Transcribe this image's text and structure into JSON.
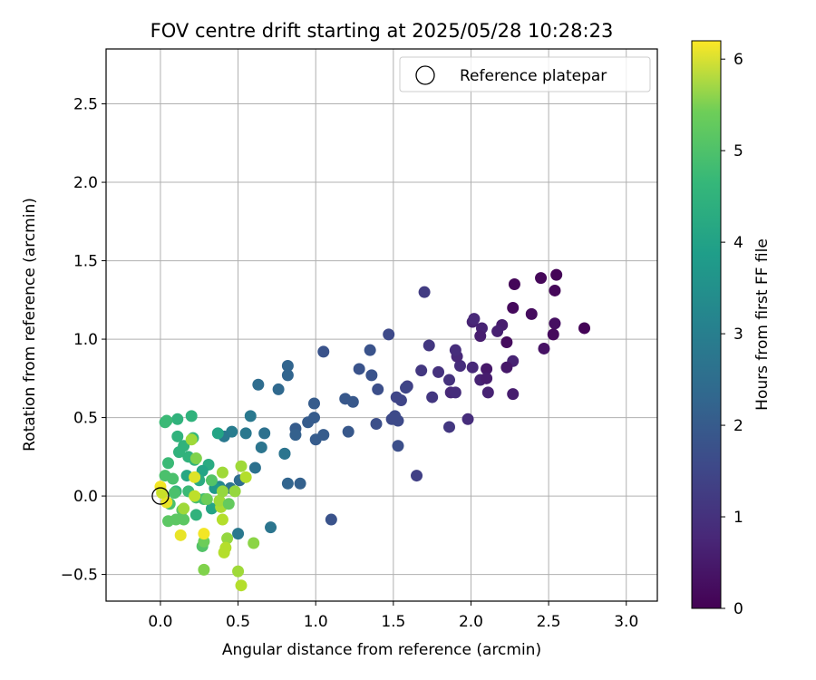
{
  "chart_data": {
    "type": "scatter",
    "title": "FOV centre drift starting at 2025/05/28 10:28:23",
    "xlabel": "Angular distance from reference (arcmin)",
    "ylabel": "Rotation from reference (arcmin)",
    "xlim": [
      -0.35,
      3.2
    ],
    "ylim": [
      -0.67,
      2.85
    ],
    "xticks": [
      0.0,
      0.5,
      1.0,
      1.5,
      2.0,
      2.5,
      3.0
    ],
    "yticks": [
      -0.5,
      0.0,
      0.5,
      1.0,
      1.5,
      2.0,
      2.5
    ],
    "xtick_labels": [
      "0.0",
      "0.5",
      "1.0",
      "1.5",
      "2.0",
      "2.5",
      "3.0"
    ],
    "ytick_labels": [
      "−0.5",
      "0.0",
      "0.5",
      "1.0",
      "1.5",
      "2.0",
      "2.5"
    ],
    "grid": true,
    "legend": {
      "location": "upper right",
      "entries": [
        "Reference platepar"
      ]
    },
    "reference_point": {
      "x": 0.0,
      "y": 0.0,
      "label": "Reference platepar"
    },
    "colorbar": {
      "label": "Hours from first FF file",
      "colormap": "viridis",
      "range": [
        0,
        6.2
      ],
      "ticks": [
        0,
        1,
        2,
        3,
        4,
        5,
        6
      ],
      "tick_labels": [
        "0",
        "1",
        "2",
        "3",
        "4",
        "5",
        "6"
      ]
    },
    "points": [
      {
        "x": 2.55,
        "y": 1.41,
        "c": 0.05
      },
      {
        "x": 2.45,
        "y": 1.39,
        "c": 0.1
      },
      {
        "x": 2.28,
        "y": 1.35,
        "c": 0.08
      },
      {
        "x": 2.54,
        "y": 1.31,
        "c": 0.1
      },
      {
        "x": 2.27,
        "y": 1.2,
        "c": 0.15
      },
      {
        "x": 2.39,
        "y": 1.16,
        "c": 0.2
      },
      {
        "x": 2.54,
        "y": 1.1,
        "c": 0.25
      },
      {
        "x": 2.73,
        "y": 1.07,
        "c": 0.05
      },
      {
        "x": 2.53,
        "y": 1.03,
        "c": 0.15
      },
      {
        "x": 2.47,
        "y": 0.94,
        "c": 0.3
      },
      {
        "x": 2.23,
        "y": 0.98,
        "c": 0.2
      },
      {
        "x": 2.2,
        "y": 1.09,
        "c": 0.5
      },
      {
        "x": 2.17,
        "y": 1.05,
        "c": 0.55
      },
      {
        "x": 2.07,
        "y": 1.07,
        "c": 0.6
      },
      {
        "x": 2.01,
        "y": 1.11,
        "c": 0.6
      },
      {
        "x": 2.02,
        "y": 1.13,
        "c": 0.7
      },
      {
        "x": 2.06,
        "y": 1.02,
        "c": 0.5
      },
      {
        "x": 2.27,
        "y": 0.86,
        "c": 0.6
      },
      {
        "x": 2.23,
        "y": 0.82,
        "c": 0.4
      },
      {
        "x": 2.1,
        "y": 0.81,
        "c": 0.4
      },
      {
        "x": 2.06,
        "y": 0.74,
        "c": 0.6
      },
      {
        "x": 2.1,
        "y": 0.75,
        "c": 0.5
      },
      {
        "x": 2.01,
        "y": 0.82,
        "c": 0.7
      },
      {
        "x": 1.93,
        "y": 0.83,
        "c": 0.8
      },
      {
        "x": 1.91,
        "y": 0.89,
        "c": 0.7
      },
      {
        "x": 1.9,
        "y": 0.93,
        "c": 0.8
      },
      {
        "x": 2.27,
        "y": 0.65,
        "c": 0.5
      },
      {
        "x": 2.11,
        "y": 0.66,
        "c": 0.6
      },
      {
        "x": 1.98,
        "y": 0.49,
        "c": 0.8
      },
      {
        "x": 1.87,
        "y": 0.66,
        "c": 0.7
      },
      {
        "x": 1.9,
        "y": 0.66,
        "c": 0.8
      },
      {
        "x": 1.86,
        "y": 0.74,
        "c": 0.9
      },
      {
        "x": 1.79,
        "y": 0.79,
        "c": 0.9
      },
      {
        "x": 1.75,
        "y": 0.63,
        "c": 1.0
      },
      {
        "x": 1.86,
        "y": 0.44,
        "c": 1.0
      },
      {
        "x": 1.68,
        "y": 0.8,
        "c": 1.0
      },
      {
        "x": 1.73,
        "y": 0.96,
        "c": 1.0
      },
      {
        "x": 1.7,
        "y": 1.3,
        "c": 1.1
      },
      {
        "x": 1.65,
        "y": 0.13,
        "c": 1.2
      },
      {
        "x": 1.59,
        "y": 0.7,
        "c": 1.2
      },
      {
        "x": 1.58,
        "y": 0.69,
        "c": 1.3
      },
      {
        "x": 1.55,
        "y": 0.61,
        "c": 1.3
      },
      {
        "x": 1.52,
        "y": 0.63,
        "c": 1.3
      },
      {
        "x": 1.53,
        "y": 0.48,
        "c": 1.4
      },
      {
        "x": 1.51,
        "y": 0.51,
        "c": 1.4
      },
      {
        "x": 1.49,
        "y": 0.49,
        "c": 1.4
      },
      {
        "x": 1.53,
        "y": 0.32,
        "c": 1.5
      },
      {
        "x": 1.47,
        "y": 1.03,
        "c": 1.4
      },
      {
        "x": 1.39,
        "y": 0.46,
        "c": 1.5
      },
      {
        "x": 1.4,
        "y": 0.68,
        "c": 1.5
      },
      {
        "x": 1.36,
        "y": 0.77,
        "c": 1.6
      },
      {
        "x": 1.35,
        "y": 0.93,
        "c": 1.6
      },
      {
        "x": 1.28,
        "y": 0.81,
        "c": 1.6
      },
      {
        "x": 1.24,
        "y": 0.6,
        "c": 1.7
      },
      {
        "x": 1.19,
        "y": 0.62,
        "c": 1.7
      },
      {
        "x": 1.21,
        "y": 0.41,
        "c": 1.7
      },
      {
        "x": 1.1,
        "y": -0.15,
        "c": 1.6
      },
      {
        "x": 1.05,
        "y": 0.39,
        "c": 1.8
      },
      {
        "x": 1.05,
        "y": 0.92,
        "c": 1.6
      },
      {
        "x": 1.0,
        "y": 0.36,
        "c": 1.8
      },
      {
        "x": 0.99,
        "y": 0.59,
        "c": 1.8
      },
      {
        "x": 0.99,
        "y": 0.5,
        "c": 1.8
      },
      {
        "x": 0.95,
        "y": 0.47,
        "c": 1.8
      },
      {
        "x": 0.9,
        "y": 0.08,
        "c": 1.9
      },
      {
        "x": 0.87,
        "y": 0.43,
        "c": 1.8
      },
      {
        "x": 0.87,
        "y": 0.39,
        "c": 1.9
      },
      {
        "x": 0.82,
        "y": 0.08,
        "c": 2.0
      },
      {
        "x": 0.8,
        "y": 0.27,
        "c": 2.0
      },
      {
        "x": 0.82,
        "y": 0.83,
        "c": 2.0
      },
      {
        "x": 0.82,
        "y": 0.77,
        "c": 2.0
      },
      {
        "x": 0.76,
        "y": 0.68,
        "c": 2.1
      },
      {
        "x": 0.71,
        "y": -0.2,
        "c": 2.4
      },
      {
        "x": 0.67,
        "y": 0.4,
        "c": 2.3
      },
      {
        "x": 0.65,
        "y": 0.31,
        "c": 2.4
      },
      {
        "x": 0.63,
        "y": 0.71,
        "c": 2.2
      },
      {
        "x": 0.61,
        "y": 0.18,
        "c": 2.3
      },
      {
        "x": 0.58,
        "y": 0.51,
        "c": 2.5
      },
      {
        "x": 0.55,
        "y": 0.4,
        "c": 2.5
      },
      {
        "x": 0.51,
        "y": 0.1,
        "c": 2.2
      },
      {
        "x": 0.5,
        "y": -0.24,
        "c": 2.5
      },
      {
        "x": 0.46,
        "y": 0.41,
        "c": 2.6
      },
      {
        "x": 0.41,
        "y": 0.38,
        "c": 2.5
      },
      {
        "x": 0.45,
        "y": 0.05,
        "c": 2.4
      },
      {
        "x": 0.8,
        "y": 0.27,
        "c": 2.4
      },
      {
        "x": 0.37,
        "y": 0.4,
        "c": 3.6
      },
      {
        "x": 0.38,
        "y": 0.06,
        "c": 2.9
      },
      {
        "x": 0.35,
        "y": 0.05,
        "c": 3.3
      },
      {
        "x": 0.33,
        "y": -0.08,
        "c": 3.6
      },
      {
        "x": 0.31,
        "y": 0.2,
        "c": 3.8
      },
      {
        "x": 0.27,
        "y": 0.16,
        "c": 3.6
      },
      {
        "x": 0.25,
        "y": 0.1,
        "c": 3.8
      },
      {
        "x": 0.22,
        "y": 0.23,
        "c": 4.0
      },
      {
        "x": 0.2,
        "y": 0.51,
        "c": 4.0
      },
      {
        "x": 0.21,
        "y": 0.37,
        "c": 4.1
      },
      {
        "x": 0.18,
        "y": 0.25,
        "c": 4.0
      },
      {
        "x": 0.17,
        "y": 0.13,
        "c": 3.7
      },
      {
        "x": 0.15,
        "y": 0.32,
        "c": 4.0
      },
      {
        "x": 0.12,
        "y": 0.28,
        "c": 4.0
      },
      {
        "x": 0.11,
        "y": 0.38,
        "c": 4.0
      },
      {
        "x": 0.11,
        "y": 0.49,
        "c": 4.0
      },
      {
        "x": 0.04,
        "y": 0.48,
        "c": 4.2
      },
      {
        "x": 0.03,
        "y": 0.47,
        "c": 4.2
      },
      {
        "x": 0.05,
        "y": 0.21,
        "c": 4.2
      },
      {
        "x": 0.03,
        "y": 0.13,
        "c": 4.4
      },
      {
        "x": 0.08,
        "y": 0.11,
        "c": 4.4
      },
      {
        "x": 0.1,
        "y": 0.03,
        "c": 4.1
      },
      {
        "x": 0.09,
        "y": 0.02,
        "c": 4.4
      },
      {
        "x": 0.06,
        "y": -0.05,
        "c": 4.4
      },
      {
        "x": 0.05,
        "y": -0.16,
        "c": 4.6
      },
      {
        "x": 0.1,
        "y": -0.15,
        "c": 4.6
      },
      {
        "x": 0.15,
        "y": -0.15,
        "c": 4.6
      },
      {
        "x": 0.14,
        "y": -0.09,
        "c": 4.6
      },
      {
        "x": 0.18,
        "y": 0.03,
        "c": 4.2
      },
      {
        "x": 0.23,
        "y": -0.12,
        "c": 4.0
      },
      {
        "x": 0.23,
        "y": -0.01,
        "c": 4.3
      },
      {
        "x": 0.28,
        "y": -0.02,
        "c": 4.3
      },
      {
        "x": 0.27,
        "y": -0.32,
        "c": 4.5
      },
      {
        "x": 0.28,
        "y": -0.29,
        "c": 4.8
      },
      {
        "x": 0.28,
        "y": -0.47,
        "c": 5.0
      },
      {
        "x": 0.3,
        "y": -0.02,
        "c": 4.8
      },
      {
        "x": 0.33,
        "y": 0.1,
        "c": 4.5
      },
      {
        "x": 0.39,
        "y": -0.07,
        "c": 5.1
      },
      {
        "x": 0.43,
        "y": -0.27,
        "c": 5.2
      },
      {
        "x": 0.42,
        "y": -0.33,
        "c": 5.5
      },
      {
        "x": 0.41,
        "y": -0.36,
        "c": 5.5
      },
      {
        "x": 0.4,
        "y": -0.15,
        "c": 5.5
      },
      {
        "x": 0.39,
        "y": -0.07,
        "c": 5.4
      },
      {
        "x": 0.38,
        "y": -0.03,
        "c": 5.3
      },
      {
        "x": 0.4,
        "y": 0.03,
        "c": 5.2
      },
      {
        "x": 0.4,
        "y": 0.15,
        "c": 5.3
      },
      {
        "x": 0.44,
        "y": -0.05,
        "c": 4.7
      },
      {
        "x": 0.48,
        "y": 0.03,
        "c": 5.2
      },
      {
        "x": 0.52,
        "y": 0.19,
        "c": 5.3
      },
      {
        "x": 0.55,
        "y": 0.12,
        "c": 5.5
      },
      {
        "x": 0.6,
        "y": -0.3,
        "c": 5.1
      },
      {
        "x": 0.5,
        "y": -0.48,
        "c": 5.3
      },
      {
        "x": 0.52,
        "y": -0.57,
        "c": 5.5
      },
      {
        "x": 0.2,
        "y": 0.36,
        "c": 5.3
      },
      {
        "x": 0.23,
        "y": 0.24,
        "c": 5.0
      },
      {
        "x": 0.22,
        "y": 0.12,
        "c": 5.9
      },
      {
        "x": 0.22,
        "y": 0.0,
        "c": 5.6
      },
      {
        "x": 0.15,
        "y": -0.08,
        "c": 5.3
      },
      {
        "x": 0.13,
        "y": -0.25,
        "c": 6.0
      },
      {
        "x": 0.28,
        "y": -0.24,
        "c": 6.1
      },
      {
        "x": 0.04,
        "y": -0.04,
        "c": 6.0
      },
      {
        "x": 0.0,
        "y": 0.06,
        "c": 6.1
      },
      {
        "x": 0.01,
        "y": 0.02,
        "c": 5.7
      }
    ]
  }
}
